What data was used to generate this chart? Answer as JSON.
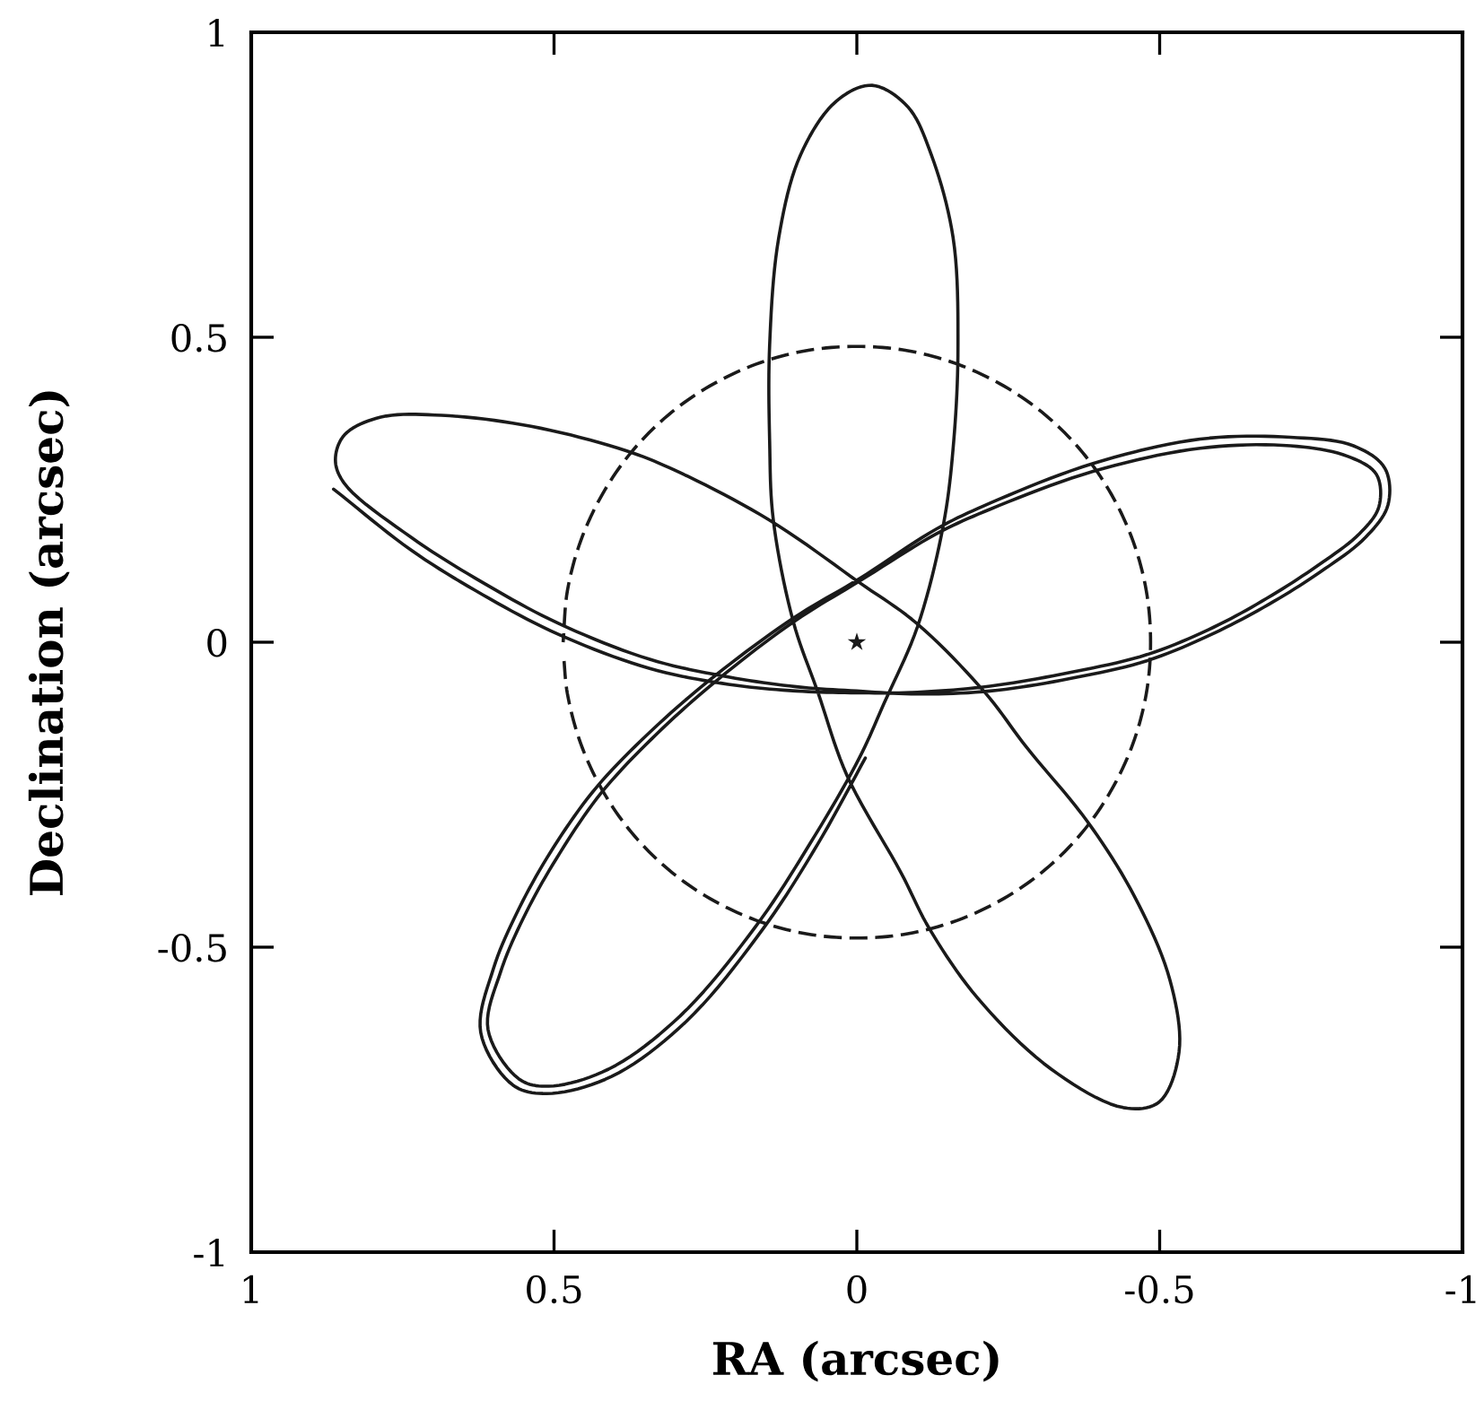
{
  "chart_data": {
    "type": "line",
    "xlabel": "RA (arcsec)",
    "ylabel": "Declination (arcsec)",
    "xlim": [
      1,
      -1
    ],
    "ylim": [
      -1,
      1
    ],
    "xticks": [
      1,
      0.5,
      0,
      -0.5,
      -1
    ],
    "yticks": [
      -1,
      -0.5,
      0,
      0.5,
      1
    ],
    "grid": false,
    "series": [
      {
        "color": "#1a1a1a",
        "line_style": "solid",
        "x": [
          0.864,
          0.736,
          0.618,
          0.493,
          0.342,
          0.212,
          0.1,
          0.0,
          -0.1,
          -0.22,
          -0.35,
          -0.48,
          -0.59,
          -0.677,
          -0.76,
          -0.83,
          -0.862,
          -0.858,
          -0.81,
          -0.716,
          -0.567,
          -0.39,
          -0.22,
          -0.132,
          -0.004,
          0.102,
          0.228,
          0.33,
          0.422,
          0.49,
          0.546,
          0.588,
          0.609,
          0.558,
          0.509,
          0.41,
          0.292,
          0.167,
          0.076,
          -0.004,
          -0.045,
          -0.1,
          -0.143,
          -0.16,
          -0.167,
          -0.159,
          -0.123,
          -0.084,
          -0.025,
          0.034,
          0.093,
          0.129,
          0.144,
          0.144,
          0.138,
          0.105,
          0.064,
          0.016,
          -0.073,
          -0.12,
          -0.2,
          -0.321,
          -0.44,
          -0.499,
          -0.532,
          -0.517,
          -0.458,
          -0.38,
          -0.28,
          -0.212,
          -0.1,
          -0.004,
          0.144,
          0.292,
          0.381,
          0.538,
          0.686,
          0.786,
          0.846,
          0.861,
          0.846,
          0.736,
          0.618,
          0.493,
          0.342,
          0.212,
          0.1,
          0.0,
          -0.1,
          -0.22,
          -0.35,
          -0.48,
          -0.59,
          -0.68,
          -0.765,
          -0.84,
          -0.877,
          -0.872,
          -0.82,
          -0.716,
          -0.567,
          -0.39,
          -0.22,
          -0.132,
          -0.004,
          0.104,
          0.233,
          0.337,
          0.43,
          0.5,
          0.557,
          0.6,
          0.621,
          0.568,
          0.512,
          0.405,
          0.282,
          0.155,
          0.064,
          -0.014
        ],
        "values": [
          0.251,
          0.151,
          0.078,
          0.013,
          -0.043,
          -0.069,
          -0.08,
          -0.083,
          -0.082,
          -0.072,
          -0.05,
          -0.02,
          0.025,
          0.072,
          0.125,
          0.178,
          0.222,
          0.275,
          0.305,
          0.322,
          0.318,
          0.28,
          0.218,
          0.178,
          0.1,
          0.035,
          -0.06,
          -0.15,
          -0.247,
          -0.345,
          -0.443,
          -0.54,
          -0.635,
          -0.716,
          -0.728,
          -0.7,
          -0.613,
          -0.466,
          -0.328,
          -0.19,
          -0.1,
          0.025,
          0.193,
          0.33,
          0.487,
          0.663,
          0.799,
          0.878,
          0.913,
          0.887,
          0.799,
          0.663,
          0.487,
          0.33,
          0.201,
          0.034,
          -0.083,
          -0.219,
          -0.378,
          -0.47,
          -0.584,
          -0.7,
          -0.763,
          -0.754,
          -0.672,
          -0.554,
          -0.416,
          -0.293,
          -0.172,
          -0.083,
          0.03,
          0.098,
          0.2,
          0.278,
          0.314,
          0.354,
          0.372,
          0.369,
          0.34,
          0.299,
          0.26,
          0.172,
          0.098,
          0.031,
          -0.028,
          -0.057,
          -0.073,
          -0.08,
          -0.085,
          -0.08,
          -0.06,
          -0.03,
          0.015,
          0.062,
          0.115,
          0.172,
          0.225,
          0.285,
          0.322,
          0.336,
          0.333,
          0.293,
          0.228,
          0.186,
          0.104,
          0.04,
          -0.054,
          -0.143,
          -0.238,
          -0.335,
          -0.435,
          -0.535,
          -0.64,
          -0.726,
          -0.74,
          -0.712,
          -0.622,
          -0.47,
          -0.33,
          -0.19
        ]
      },
      {
        "color": "#1a1a1a",
        "line_style": "dashed",
        "x": [
          0.485,
          0.478,
          0.456,
          0.42,
          0.372,
          0.312,
          0.243,
          0.166,
          0.084,
          0,
          -0.084,
          -0.166,
          -0.243,
          -0.312,
          -0.372,
          -0.42,
          -0.456,
          -0.478,
          -0.485,
          -0.478,
          -0.456,
          -0.42,
          -0.372,
          -0.312,
          -0.243,
          -0.166,
          -0.084,
          0,
          0.084,
          0.166,
          0.243,
          0.312,
          0.372,
          0.42,
          0.456,
          0.478,
          0.484
        ],
        "values": [
          0,
          0.084,
          0.166,
          0.243,
          0.312,
          0.372,
          0.42,
          0.456,
          0.478,
          0.485,
          0.478,
          0.456,
          0.42,
          0.372,
          0.312,
          0.243,
          0.166,
          0.084,
          0,
          -0.084,
          -0.166,
          -0.243,
          -0.312,
          -0.372,
          -0.42,
          -0.456,
          -0.478,
          -0.485,
          -0.478,
          -0.456,
          -0.42,
          -0.372,
          -0.312,
          -0.243,
          -0.166,
          -0.084,
          -0.025
        ]
      },
      {
        "type": "scatter",
        "color": "#1a1a1a",
        "marker": "star",
        "x": [
          0
        ],
        "values": [
          0
        ]
      }
    ]
  }
}
